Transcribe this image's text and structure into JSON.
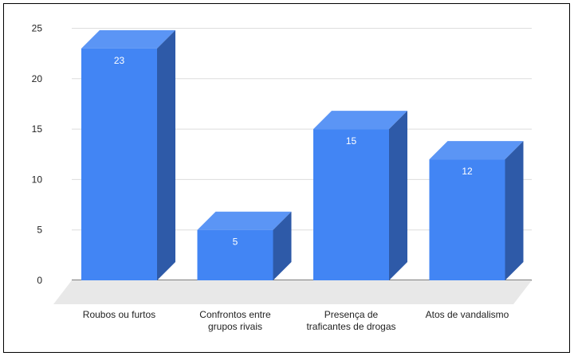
{
  "chart_data": {
    "type": "bar",
    "style": "3d",
    "title": "",
    "xlabel": "",
    "ylabel": "",
    "categories": [
      [
        "Roubos ou furtos"
      ],
      [
        "Confrontos entre",
        "grupos rivais"
      ],
      [
        "Presença de",
        "traficantes de drogas"
      ],
      [
        "Atos de vandalismo"
      ]
    ],
    "values": [
      23,
      5,
      15,
      12
    ],
    "data_labels": [
      "23",
      "5",
      "15",
      "12"
    ],
    "y_ticks": [
      "0",
      "5",
      "10",
      "15",
      "20",
      "25"
    ],
    "ylim": [
      0,
      25
    ],
    "grid": true,
    "legend": "none",
    "colors": {
      "bar_front": "#4285f4",
      "bar_side": "#2e5aa8",
      "bar_top": "#5b95f5",
      "floor": "#e8e8e8",
      "grid": "#dddddd",
      "axis": "#333333",
      "data_label": "#ffffff",
      "text": "#222222"
    }
  }
}
